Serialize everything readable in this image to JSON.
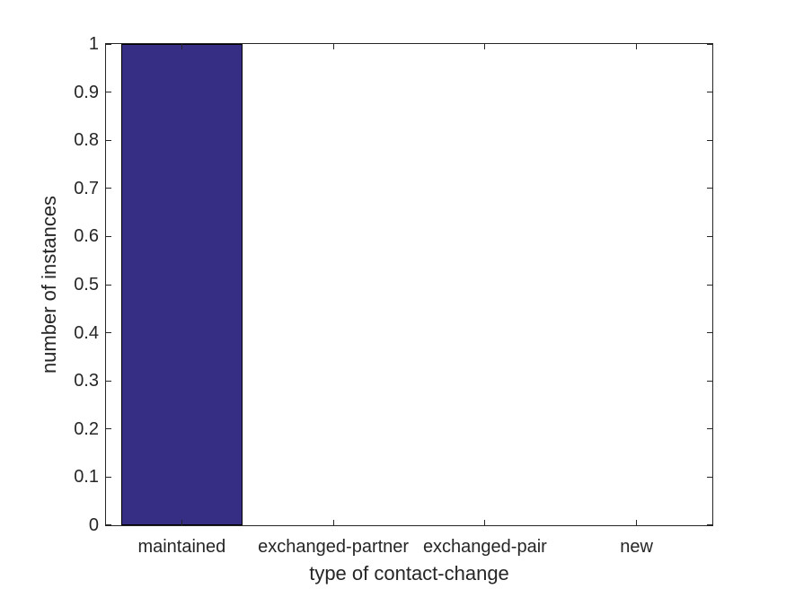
{
  "chart_data": {
    "type": "bar",
    "categories": [
      "maintained",
      "exchanged-partner",
      "exchanged-pair",
      "new"
    ],
    "values": [
      1,
      0,
      0,
      0
    ],
    "title": "",
    "xlabel": "type of contact-change",
    "ylabel": "number of instances",
    "ylim": [
      0,
      1
    ],
    "yticks": [
      0,
      0.1,
      0.2,
      0.3,
      0.4,
      0.5,
      0.6,
      0.7,
      0.8,
      0.9,
      1
    ],
    "ytick_labels": [
      "0",
      "0.1",
      "0.2",
      "0.3",
      "0.4",
      "0.5",
      "0.6",
      "0.7",
      "0.8",
      "0.9",
      "1"
    ],
    "bar_width_fraction": 0.8,
    "grid": false,
    "legend": null,
    "box": true,
    "tick_direction": "in",
    "colors": {
      "bar_fill": "#362D85",
      "bar_edge": "#000000",
      "axis": "#262626",
      "text": "#262626",
      "background": "#ffffff"
    }
  }
}
